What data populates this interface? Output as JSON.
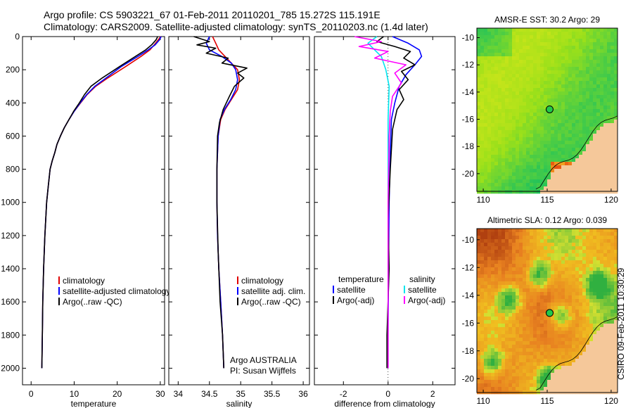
{
  "header": {
    "line1": "Argo profile: CS 5903221_67 01-Feb-2011 20110201_785 15.272S 115.191E",
    "line2": "Climatology: CARS2009. Satellite-adjusted climatology: synTS_20110203.nc (1.4d later)"
  },
  "footer_stamp": "CSIRO 09-Feb-2011 10:30:29",
  "colors": {
    "climatology": "#e00000",
    "satellite": "#0000ff",
    "argo": "#000000",
    "sat_diff": "#00e5ee",
    "argo_diff_sal": "#ff00ff"
  },
  "chart_data": [
    {
      "type": "line",
      "id": "temperature",
      "xlabel": "temperature",
      "ylabel": "",
      "xlim": [
        -2,
        31
      ],
      "ylim": [
        2100,
        0
      ],
      "reversed_y": true,
      "xticks": [
        0,
        10,
        20,
        30
      ],
      "yticks": [
        0,
        200,
        400,
        600,
        800,
        1000,
        1200,
        1400,
        1600,
        1800,
        2000
      ],
      "legend": [
        "climatology",
        "satellite-adjusted climatology",
        "Argo(..raw -QC)"
      ],
      "series": [
        {
          "name": "climatology",
          "color": "climatology",
          "x": [
            30.1,
            29.5,
            28.6,
            27.6,
            25.5,
            22.0,
            17.8,
            15.0,
            13.0,
            11.5,
            10.0,
            8.8,
            7.7,
            6.8,
            6.0,
            5.5,
            4.9,
            4.4,
            4.0,
            3.6,
            3.2,
            2.9,
            2.7,
            2.6,
            2.5
          ],
          "y": [
            0,
            20,
            50,
            80,
            120,
            180,
            250,
            300,
            350,
            400,
            450,
            500,
            550,
            600,
            650,
            700,
            750,
            800,
            900,
            1000,
            1200,
            1400,
            1600,
            1800,
            2000
          ]
        },
        {
          "name": "satellite-adjusted climatology",
          "color": "satellite",
          "x": [
            30.2,
            29.8,
            28.8,
            27.2,
            24.8,
            21.0,
            17.4,
            14.8,
            12.9,
            11.4,
            10.0,
            8.8,
            7.7,
            6.8,
            6.0,
            5.5,
            4.9,
            4.4,
            4.0,
            3.6,
            3.2,
            2.9,
            2.7,
            2.6,
            2.5
          ],
          "y": [
            0,
            20,
            50,
            80,
            120,
            180,
            250,
            300,
            350,
            400,
            450,
            500,
            550,
            600,
            650,
            700,
            750,
            800,
            900,
            1000,
            1200,
            1400,
            1600,
            1800,
            2000
          ]
        },
        {
          "name": "Argo(..raw -QC)",
          "color": "argo",
          "x": [
            29.4,
            29.0,
            28.0,
            26.6,
            24.2,
            20.6,
            16.5,
            13.9,
            12.4,
            11.2,
            9.9,
            8.8,
            7.7,
            6.8,
            6.0,
            5.5,
            4.9,
            4.4,
            4.0,
            3.6,
            3.2,
            2.9,
            2.7,
            2.6,
            2.5
          ],
          "y": [
            0,
            20,
            50,
            80,
            120,
            180,
            250,
            300,
            350,
            400,
            450,
            500,
            550,
            600,
            650,
            700,
            750,
            800,
            900,
            1000,
            1200,
            1400,
            1600,
            1800,
            2000
          ]
        }
      ]
    },
    {
      "type": "line",
      "id": "salinity",
      "xlabel": "salinity",
      "ylabel": "",
      "xlim": [
        33.85,
        36.1
      ],
      "ylim": [
        2100,
        0
      ],
      "reversed_y": true,
      "xticks": [
        34,
        34.5,
        35,
        35.5,
        36
      ],
      "legend": [
        "climatology",
        "satellite adj. clim.",
        "Argo(..raw -QC)"
      ],
      "annotations": [
        "Argo AUSTRALIA",
        "PI: Susan Wijffels"
      ],
      "series": [
        {
          "name": "climatology",
          "color": "climatology",
          "x": [
            34.55,
            34.6,
            34.65,
            34.75,
            34.85,
            34.95,
            34.98,
            34.95,
            34.85,
            34.75,
            34.68,
            34.64,
            34.62,
            34.62,
            34.63,
            34.65,
            34.68,
            34.71,
            34.73
          ],
          "y": [
            0,
            40,
            80,
            120,
            160,
            200,
            260,
            320,
            380,
            440,
            500,
            600,
            800,
            1000,
            1200,
            1400,
            1600,
            1800,
            2000
          ]
        },
        {
          "name": "satellite adj. clim.",
          "color": "satellite",
          "x": [
            34.5,
            34.45,
            34.5,
            34.7,
            34.85,
            34.92,
            34.95,
            34.92,
            34.84,
            34.74,
            34.67,
            34.64,
            34.62,
            34.62,
            34.63,
            34.65,
            34.68,
            34.71,
            34.73
          ],
          "y": [
            0,
            40,
            80,
            120,
            160,
            200,
            260,
            320,
            380,
            440,
            500,
            600,
            800,
            1000,
            1200,
            1400,
            1600,
            1800,
            2000
          ]
        },
        {
          "name": "Argo(..raw -QC)",
          "color": "argo",
          "x": [
            34.25,
            34.5,
            34.3,
            34.6,
            34.45,
            34.8,
            34.7,
            35.1,
            34.95,
            35.05,
            34.9,
            34.82,
            34.72,
            34.66,
            34.63,
            34.62,
            34.62,
            34.64,
            34.67,
            34.71,
            34.73
          ],
          "y": [
            0,
            30,
            50,
            70,
            100,
            130,
            160,
            190,
            220,
            250,
            300,
            360,
            440,
            520,
            600,
            800,
            1000,
            1300,
            1600,
            1800,
            2000
          ]
        }
      ]
    },
    {
      "type": "line",
      "id": "difference",
      "xlabel": "difference from climatology",
      "ylabel": "",
      "xlim": [
        -3.3,
        3.0
      ],
      "ylim": [
        2100,
        0
      ],
      "reversed_y": true,
      "xticks": [
        -2,
        0,
        2
      ],
      "legend_temperature": {
        "heading": "temperature",
        "items": [
          "satellite",
          "Argo(-adj)"
        ]
      },
      "legend_salinity": {
        "heading": "salinity",
        "items": [
          "satellite",
          "Argo(-adj)"
        ]
      },
      "series": [
        {
          "name": "temperature satellite",
          "color": "satellite",
          "x": [
            0.2,
            0.9,
            1.4,
            1.5,
            1.2,
            0.8,
            0.5,
            0.3,
            0.15,
            0.1,
            0.05,
            0.02,
            0.0,
            0.0
          ],
          "y": [
            0,
            40,
            80,
            120,
            170,
            230,
            300,
            400,
            500,
            700,
            1000,
            1400,
            1800,
            2000
          ]
        },
        {
          "name": "temperature Argo(-adj)",
          "color": "argo",
          "x": [
            -0.2,
            -0.5,
            0.3,
            1.0,
            0.7,
            1.2,
            0.6,
            0.9,
            0.5,
            0.7,
            0.4,
            0.2,
            0.1,
            0.0,
            0.05,
            -0.05,
            -0.05
          ],
          "y": [
            0,
            30,
            60,
            90,
            130,
            170,
            210,
            260,
            320,
            380,
            440,
            560,
            800,
            1100,
            1400,
            1800,
            2000
          ]
        },
        {
          "name": "salinity satellite",
          "color": "sat_diff",
          "x": [
            -0.5,
            -0.9,
            -0.6,
            -0.3,
            -0.1,
            0.05,
            0.0,
            0.0,
            0.0,
            0.0
          ],
          "y": [
            0,
            40,
            80,
            120,
            200,
            300,
            500,
            1000,
            1500,
            2000
          ]
        },
        {
          "name": "salinity Argo(-adj)",
          "color": "argo_diff_sal",
          "x": [
            -1.5,
            -0.3,
            -1.3,
            0.0,
            -0.6,
            0.8,
            0.3,
            0.6,
            0.2,
            0.1,
            0.05,
            0.0,
            0.0
          ],
          "y": [
            0,
            30,
            60,
            90,
            130,
            170,
            220,
            280,
            360,
            450,
            600,
            1000,
            2000
          ]
        }
      ]
    },
    {
      "type": "heatmap",
      "id": "sst_map",
      "title": "AMSR-E SST: 30.2 Argo: 29",
      "xlim": [
        109.5,
        120.5
      ],
      "ylim": [
        -21.3,
        -9.3
      ],
      "xticks": [
        110,
        115,
        120
      ],
      "yticks": [
        -10,
        -12,
        -14,
        -16,
        -18,
        -20
      ],
      "marker": {
        "lon": 115.191,
        "lat": -15.272
      }
    },
    {
      "type": "heatmap",
      "id": "sla_map",
      "title": "Altimetric SLA: 0.12 Argo: 0.039",
      "xlim": [
        109.5,
        120.5
      ],
      "ylim": [
        -21.0,
        -9.2
      ],
      "xticks": [
        110,
        115,
        120
      ],
      "yticks": [
        -10,
        -12,
        -14,
        -16,
        -18,
        -20
      ],
      "marker": {
        "lon": 115.191,
        "lat": -15.272
      }
    }
  ]
}
